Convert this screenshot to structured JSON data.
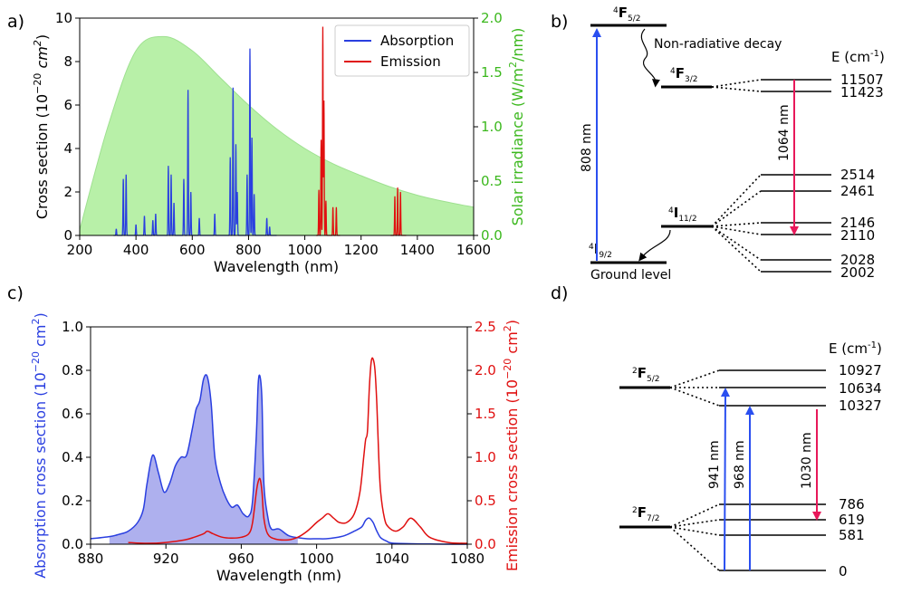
{
  "panels": {
    "a": "a)",
    "b": "b)",
    "c": "c)",
    "d": "d)"
  },
  "colors": {
    "absorption": "#2a3fe0",
    "emission": "#e01010",
    "solar": "#b8f0a8",
    "solar_axis": "#3cb81e",
    "shade": "#aeb0ee",
    "pump": "#2a4ff0",
    "laser": "#e8185a"
  },
  "chart_data": [
    {
      "id": "a",
      "type": "line",
      "title": "",
      "xlabel": "Wavelength (nm)",
      "ylabel": "Cross section (10",
      "ylabel_exp": "−20",
      "ylabel_unit": "cm",
      "ylabel_unit_exp": "2",
      "ylabel_close": ")",
      "y2label": "Solar irradiance (W/m",
      "y2label_exp": "2",
      "y2label_close": "/nm)",
      "xlim": [
        200,
        1600
      ],
      "ylim": [
        0,
        10
      ],
      "y2lim": [
        0,
        2.0
      ],
      "xticks": [
        "200",
        "400",
        "600",
        "800",
        "1000",
        "1200",
        "1400",
        "1600"
      ],
      "yticks": [
        "0",
        "2",
        "4",
        "6",
        "8",
        "10"
      ],
      "y2ticks": [
        "0.0",
        "0.5",
        "1.0",
        "1.5",
        "2.0"
      ],
      "legend": {
        "position": "top-right",
        "entries": [
          "Absorption",
          "Emission"
        ]
      },
      "series": [
        {
          "name": "Absorption",
          "peaks": [
            [
              330,
              0.3
            ],
            [
              355,
              2.6
            ],
            [
              365,
              2.8
            ],
            [
              400,
              0.5
            ],
            [
              430,
              0.9
            ],
            [
              460,
              0.7
            ],
            [
              470,
              1.0
            ],
            [
              515,
              3.2
            ],
            [
              525,
              2.8
            ],
            [
              535,
              1.5
            ],
            [
              570,
              2.6
            ],
            [
              585,
              6.7
            ],
            [
              595,
              2.0
            ],
            [
              625,
              0.8
            ],
            [
              680,
              1.0
            ],
            [
              735,
              3.6
            ],
            [
              745,
              6.8
            ],
            [
              755,
              4.2
            ],
            [
              760,
              2.0
            ],
            [
              795,
              2.8
            ],
            [
              805,
              8.6
            ],
            [
              812,
              4.5
            ],
            [
              820,
              1.9
            ],
            [
              865,
              0.8
            ],
            [
              875,
              0.4
            ]
          ]
        },
        {
          "name": "Emission",
          "peaks": [
            [
              1050,
              2.1
            ],
            [
              1058,
              4.4
            ],
            [
              1064,
              9.6
            ],
            [
              1068,
              6.2
            ],
            [
              1075,
              1.6
            ],
            [
              1100,
              1.3
            ],
            [
              1112,
              1.3
            ],
            [
              1320,
              1.8
            ],
            [
              1330,
              2.2
            ],
            [
              1340,
              2.0
            ]
          ]
        },
        {
          "name": "Solar irradiance",
          "axis": "right",
          "x": [
            200,
            300,
            400,
            500,
            600,
            700,
            800,
            900,
            1000,
            1100,
            1200,
            1300,
            1400,
            1500,
            1600
          ],
          "values": [
            0.05,
            1.0,
            1.7,
            1.83,
            1.7,
            1.45,
            1.2,
            0.98,
            0.8,
            0.66,
            0.55,
            0.45,
            0.37,
            0.31,
            0.26
          ]
        }
      ]
    },
    {
      "id": "c",
      "type": "line",
      "title": "",
      "xlabel": "Wavelength (nm)",
      "ylabel": "Absorption cross section (10",
      "ylabel_exp": "−20",
      "ylabel_unit": "cm",
      "ylabel_unit_exp": "2",
      "ylabel_close": ")",
      "y2label": "Emission cross section (10",
      "y2label_exp": "−20",
      "y2label_unit": "cm",
      "y2label_unit_exp": "2",
      "y2label_close": ")",
      "xlim": [
        880,
        1080
      ],
      "ylim": [
        0,
        1.0
      ],
      "y2lim": [
        0,
        2.5
      ],
      "xticks": [
        "880",
        "920",
        "960",
        "1000",
        "1040",
        "1080"
      ],
      "yticks": [
        "0.0",
        "0.2",
        "0.4",
        "0.6",
        "0.8",
        "1.0"
      ],
      "y2ticks": [
        "0.0",
        "0.5",
        "1.0",
        "1.5",
        "2.0",
        "2.5"
      ],
      "series": [
        {
          "name": "Absorption",
          "axis": "left",
          "x": [
            880,
            890,
            895,
            900,
            905,
            908,
            910,
            913,
            916,
            919,
            922,
            925,
            928,
            931,
            934,
            936,
            938,
            940,
            942,
            944,
            946,
            949,
            952,
            955,
            958,
            961,
            964,
            966,
            968,
            969,
            970,
            971,
            972,
            974,
            976,
            980,
            985,
            990,
            995,
            1000,
            1005,
            1010,
            1015,
            1020,
            1024,
            1026,
            1028,
            1030,
            1031,
            1032,
            1034,
            1037,
            1040,
            1050,
            1060,
            1070,
            1080
          ],
          "values": [
            0.025,
            0.035,
            0.045,
            0.06,
            0.1,
            0.16,
            0.28,
            0.41,
            0.33,
            0.24,
            0.28,
            0.36,
            0.4,
            0.41,
            0.53,
            0.62,
            0.66,
            0.76,
            0.77,
            0.65,
            0.4,
            0.28,
            0.21,
            0.17,
            0.18,
            0.14,
            0.13,
            0.2,
            0.5,
            0.74,
            0.77,
            0.66,
            0.28,
            0.13,
            0.07,
            0.07,
            0.04,
            0.03,
            0.025,
            0.025,
            0.025,
            0.03,
            0.04,
            0.06,
            0.08,
            0.11,
            0.12,
            0.1,
            0.08,
            0.06,
            0.03,
            0.015,
            0.005,
            0.002,
            0.001,
            0.0,
            0.0
          ]
        },
        {
          "name": "Absorption (shaded)",
          "axis": "left",
          "range": [
            890,
            990
          ]
        },
        {
          "name": "Emission",
          "axis": "right",
          "x": [
            900,
            910,
            920,
            930,
            935,
            940,
            942,
            945,
            950,
            955,
            960,
            964,
            966,
            968,
            969,
            970,
            971,
            972,
            974,
            978,
            985,
            990,
            995,
            1000,
            1003,
            1006,
            1009,
            1012,
            1016,
            1020,
            1023,
            1025,
            1026,
            1027,
            1028,
            1029,
            1030,
            1031,
            1032,
            1033,
            1034,
            1036,
            1038,
            1042,
            1046,
            1050,
            1055,
            1060,
            1070,
            1080
          ],
          "values": [
            0.02,
            0.01,
            0.02,
            0.05,
            0.08,
            0.12,
            0.15,
            0.12,
            0.08,
            0.07,
            0.08,
            0.12,
            0.25,
            0.6,
            0.72,
            0.75,
            0.6,
            0.3,
            0.12,
            0.06,
            0.05,
            0.08,
            0.15,
            0.25,
            0.3,
            0.35,
            0.3,
            0.25,
            0.25,
            0.35,
            0.6,
            1.0,
            1.2,
            1.3,
            1.8,
            2.1,
            2.13,
            2.0,
            1.6,
            1.0,
            0.6,
            0.3,
            0.2,
            0.15,
            0.2,
            0.3,
            0.2,
            0.08,
            0.02,
            0.01
          ]
        }
      ]
    }
  ],
  "diagram_b": {
    "energy_label": "E  (cm",
    "energy_label_exp": "-1",
    "energy_label_close": ")",
    "states": [
      {
        "base": "4",
        "letter": "F",
        "sub": "5/2"
      },
      {
        "base": "4",
        "letter": "F",
        "sub": "3/2"
      },
      {
        "base": "4",
        "letter": "I",
        "sub": "11/2"
      },
      {
        "base": "4",
        "letter": "I",
        "sub": "9/2"
      }
    ],
    "decay_label": "Non-radiative decay",
    "ground_label": "Ground level",
    "pump_label": "808 nm",
    "laser_label": "1064 nm",
    "levels": [
      "11507",
      "11423",
      "2514",
      "2461",
      "2146",
      "2110",
      "2028",
      "2002"
    ]
  },
  "diagram_d": {
    "energy_label": "E  (cm",
    "energy_label_exp": "-1",
    "energy_label_close": ")",
    "states": [
      {
        "base": "2",
        "letter": "F",
        "sub": "5/2"
      },
      {
        "base": "2",
        "letter": "F",
        "sub": "7/2"
      }
    ],
    "pump1_label": "941 nm",
    "pump2_label": "968 nm",
    "laser_label": "1030 nm",
    "levels": [
      "10927",
      "10634",
      "10327",
      "786",
      "619",
      "581",
      "0"
    ]
  }
}
